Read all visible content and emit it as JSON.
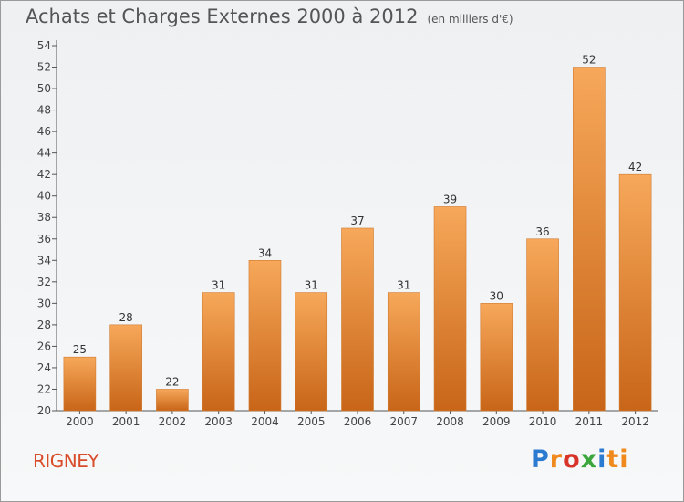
{
  "title": "Achats et Charges Externes 2000 à 2012",
  "subtitle": "(en milliers d'€)",
  "place": "RIGNEY",
  "logo": [
    "P",
    "r",
    "o",
    "x",
    "i",
    "ti"
  ],
  "colors": {
    "bar_top": "#f7a85a",
    "bar_bottom": "#c86518",
    "axis": "#555555"
  },
  "chart_data": {
    "type": "bar",
    "title": "Achats et Charges Externes 2000 à 2012",
    "subtitle": "(en milliers d'€)",
    "categories": [
      "2000",
      "2001",
      "2002",
      "2003",
      "2004",
      "2005",
      "2006",
      "2007",
      "2008",
      "2009",
      "2010",
      "2011",
      "2012"
    ],
    "values": [
      25,
      28,
      22,
      31,
      34,
      31,
      37,
      31,
      39,
      30,
      36,
      52,
      42
    ],
    "ylim": [
      20,
      54
    ],
    "yticks": [
      20,
      22,
      24,
      26,
      28,
      30,
      32,
      34,
      36,
      38,
      40,
      42,
      44,
      46,
      48,
      50,
      52,
      54
    ],
    "grid": false,
    "data_labels": true
  }
}
